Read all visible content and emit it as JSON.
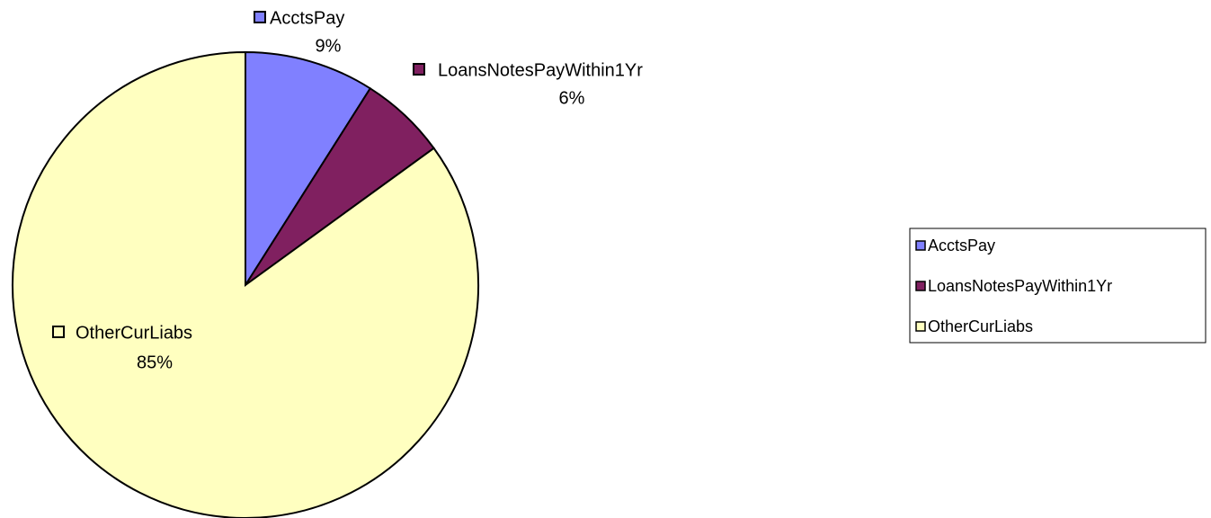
{
  "chart_data": {
    "type": "pie",
    "categories": [
      "AcctsPay",
      "LoansNotesPayWithin1Yr",
      "OtherCurLiabs"
    ],
    "values": [
      9,
      6,
      85
    ],
    "value_labels": [
      "9%",
      "6%",
      "85%"
    ],
    "colors": [
      "#8080ff",
      "#802060",
      "#ffffc0"
    ],
    "legend": "right"
  }
}
